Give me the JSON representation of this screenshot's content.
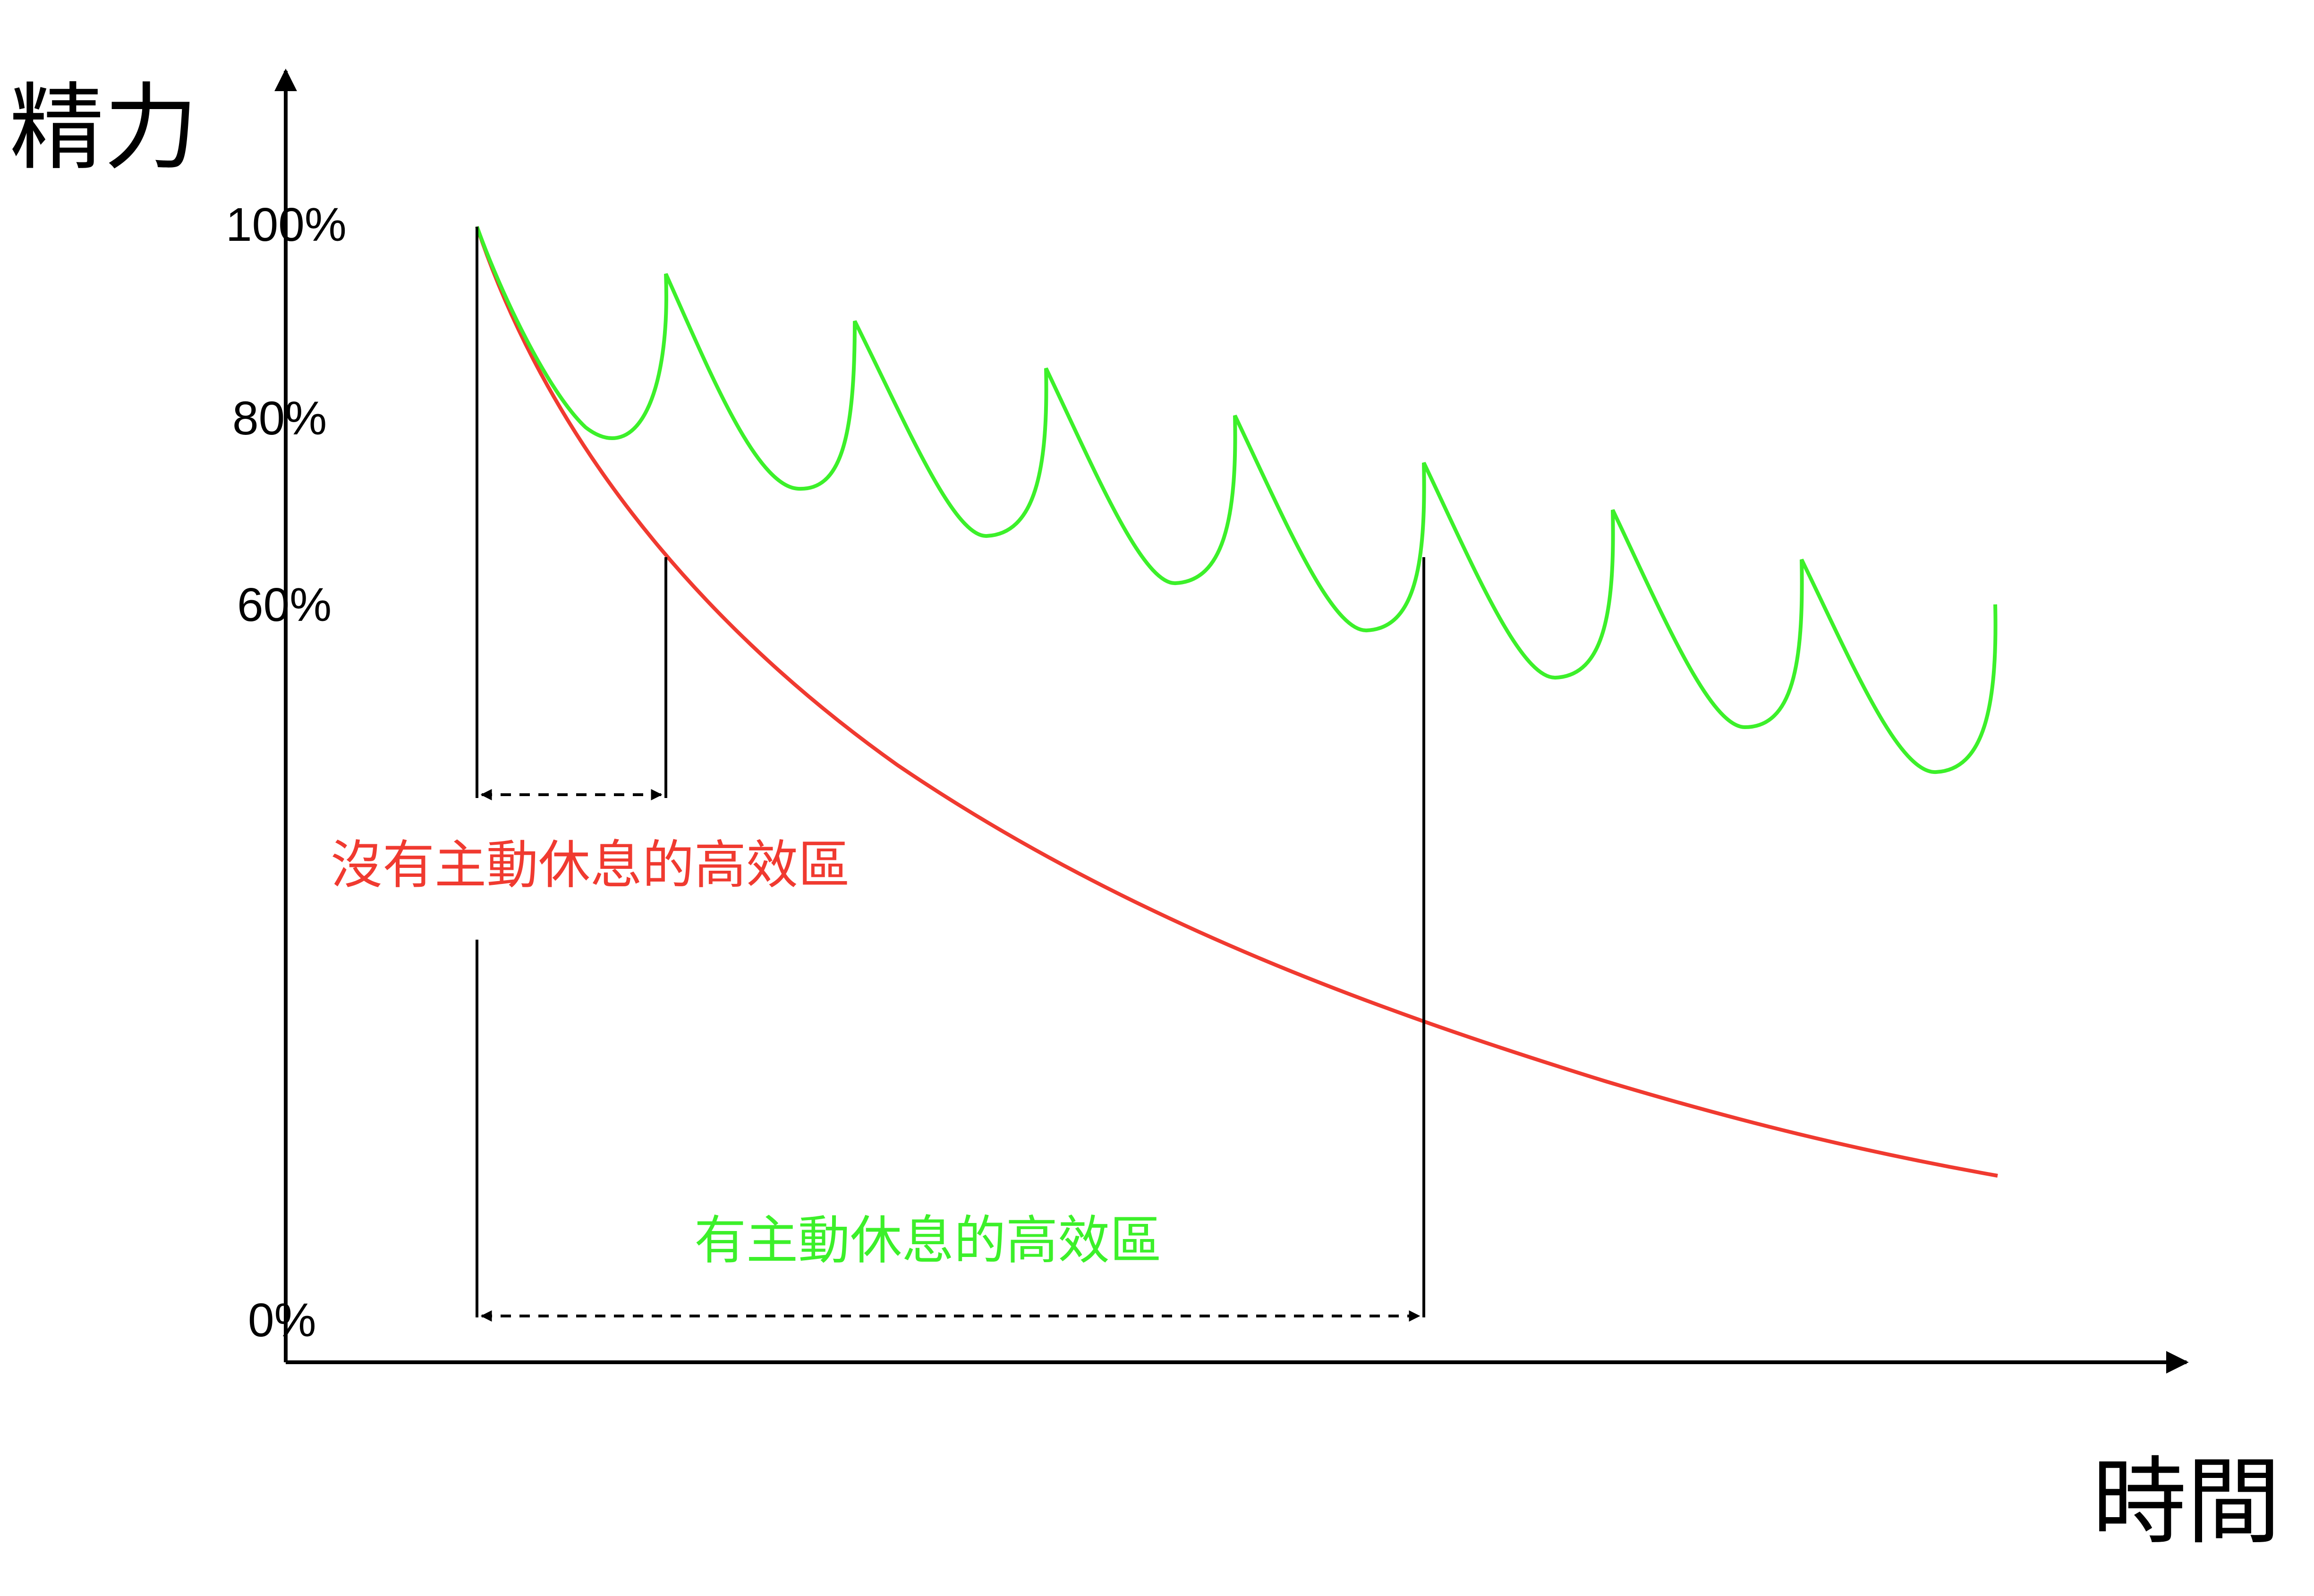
{
  "axes": {
    "y_label": "精力",
    "x_label": "時間",
    "y_ticks": [
      "100%",
      "80%",
      "60%",
      "0%"
    ]
  },
  "zones": {
    "no_rest": {
      "label": "沒有主動休息的高效區"
    },
    "with_rest": {
      "label": "有主動休息的高效區"
    }
  },
  "colors": {
    "no_rest_curve": "#f03a30",
    "with_rest_curve": "#3cf02a",
    "axis": "#000000"
  }
}
